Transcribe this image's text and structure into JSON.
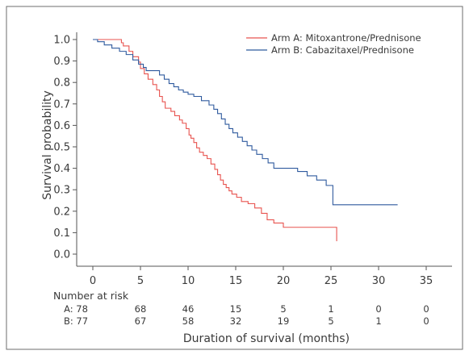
{
  "chart_data": {
    "type": "line",
    "xlabel": "Duration of survival (months)",
    "ylabel": "Survival probability",
    "xlim": [
      0,
      35
    ],
    "ylim": [
      0.0,
      1.0
    ],
    "xticks": [
      "0",
      "5",
      "10",
      "15",
      "20",
      "25",
      "30",
      "35"
    ],
    "yticks": [
      "0.0",
      "0.1",
      "0.2",
      "0.3",
      "0.4",
      "0.5",
      "0.6",
      "0.7",
      "0.8",
      "0.9",
      "1.0"
    ],
    "grid": false,
    "legend_position": "top-right",
    "series": [
      {
        "name": "Arm A: Mitoxantrone/Prednisone",
        "color": "#e8534f",
        "step": true,
        "x": [
          0,
          3.0,
          3.2,
          3.8,
          4.2,
          4.8,
          5.0,
          5.4,
          5.8,
          6.3,
          6.7,
          7.0,
          7.3,
          7.6,
          8.2,
          8.6,
          9.1,
          9.4,
          9.8,
          10.1,
          10.3,
          10.6,
          10.9,
          11.2,
          11.6,
          12.0,
          12.4,
          12.8,
          13.1,
          13.4,
          13.7,
          14.0,
          14.3,
          14.6,
          15.1,
          15.6,
          16.3,
          17.0,
          17.7,
          18.3,
          19.0,
          20.0,
          25.6
        ],
        "y": [
          1.0,
          0.985,
          0.97,
          0.945,
          0.92,
          0.895,
          0.865,
          0.84,
          0.815,
          0.79,
          0.765,
          0.735,
          0.71,
          0.68,
          0.665,
          0.645,
          0.625,
          0.61,
          0.585,
          0.555,
          0.54,
          0.52,
          0.495,
          0.475,
          0.46,
          0.445,
          0.42,
          0.395,
          0.37,
          0.345,
          0.325,
          0.31,
          0.295,
          0.28,
          0.265,
          0.245,
          0.235,
          0.215,
          0.19,
          0.16,
          0.145,
          0.125,
          0.06
        ]
      },
      {
        "name": "Arm B: Cabazitaxel/Prednisone",
        "color": "#2f5a9e",
        "step": true,
        "x": [
          0,
          0.5,
          1.2,
          2.0,
          2.8,
          3.5,
          4.2,
          4.8,
          5.3,
          5.6,
          7.0,
          7.5,
          8.0,
          8.5,
          9.0,
          9.5,
          10.0,
          10.6,
          11.4,
          12.2,
          12.7,
          13.1,
          13.5,
          13.9,
          14.3,
          14.7,
          15.2,
          15.7,
          16.2,
          16.7,
          17.2,
          17.8,
          18.4,
          19.0,
          21.5,
          22.5,
          23.5,
          24.5,
          25.2,
          32.0
        ],
        "y": [
          1.0,
          0.99,
          0.975,
          0.96,
          0.945,
          0.93,
          0.905,
          0.885,
          0.87,
          0.855,
          0.835,
          0.815,
          0.795,
          0.78,
          0.765,
          0.755,
          0.745,
          0.735,
          0.715,
          0.695,
          0.675,
          0.655,
          0.63,
          0.605,
          0.585,
          0.565,
          0.545,
          0.525,
          0.505,
          0.485,
          0.465,
          0.445,
          0.425,
          0.4,
          0.385,
          0.365,
          0.345,
          0.32,
          0.23,
          0.23
        ]
      }
    ]
  },
  "risk_table": {
    "title": "Number at risk",
    "rows": [
      {
        "label": "A: 78",
        "values": [
          "68",
          "46",
          "15",
          "5",
          "1",
          "0",
          "0"
        ]
      },
      {
        "label": "B: 77",
        "values": [
          "67",
          "58",
          "32",
          "19",
          "5",
          "1",
          "0"
        ]
      }
    ]
  }
}
